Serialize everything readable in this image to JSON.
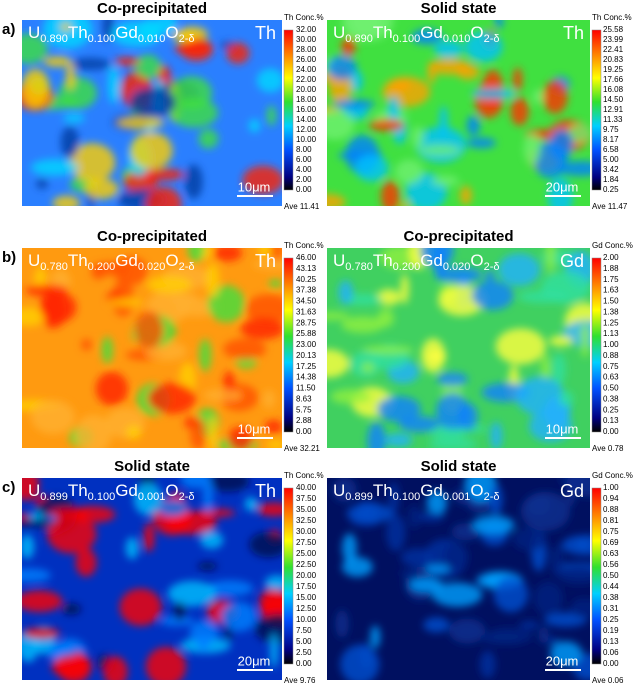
{
  "rows": [
    {
      "label": "a)",
      "panels": [
        {
          "title": "Co-precipitated",
          "formula": [
            "U",
            "0.890",
            "Th",
            "0.100",
            "Gd",
            "0.010",
            "O",
            "2-δ"
          ],
          "element": "Th",
          "colorbar_title": "Th Conc.%",
          "ticks": [
            "32.00",
            "30.00",
            "28.00",
            "26.00",
            "24.00",
            "22.00",
            "20.00",
            "18.00",
            "16.00",
            "14.00",
            "12.00",
            "10.00",
            "8.00",
            "6.00",
            "4.00",
            "2.00",
            "0.00"
          ],
          "average": "Ave 11.41",
          "scale_bar": "10μm"
        },
        {
          "title": "Solid state",
          "formula": [
            "U",
            "0.890",
            "Th",
            "0.100",
            "Gd",
            "0.010",
            "O",
            "2-δ"
          ],
          "element": "Th",
          "colorbar_title": "Th Conc.%",
          "ticks": [
            "25.58",
            "23.99",
            "22.41",
            "20.83",
            "19.25",
            "17.66",
            "16.08",
            "14.50",
            "12.91",
            "11.33",
            "9.75",
            "8.17",
            "6.58",
            "5.00",
            "3.42",
            "1.84",
            "0.25"
          ],
          "average": "Ave 11.47",
          "scale_bar": "20μm"
        }
      ]
    },
    {
      "label": "b)",
      "panels": [
        {
          "title": "Co-precipitated",
          "formula": [
            "U",
            "0.780",
            "Th",
            "0.200",
            "Gd",
            "0.020",
            "O",
            "2-δ"
          ],
          "element": "Th",
          "colorbar_title": "Th Conc.%",
          "ticks": [
            "46.00",
            "43.13",
            "40.25",
            "37.38",
            "34.50",
            "31.63",
            "28.75",
            "25.88",
            "23.00",
            "20.13",
            "17.25",
            "14.38",
            "11.50",
            "8.63",
            "5.75",
            "2.88",
            "0.00"
          ],
          "average": "Ave 32.21",
          "scale_bar": "10μm"
        },
        {
          "title": "Co-precipitated",
          "formula": [
            "U",
            "0.780",
            "Th",
            "0.200",
            "Gd",
            "0.020",
            "O",
            "2-δ"
          ],
          "element": "Gd",
          "colorbar_title": "Gd Conc.%",
          "ticks": [
            "2.00",
            "1.88",
            "1.75",
            "1.63",
            "1.50",
            "1.38",
            "1.25",
            "1.13",
            "1.00",
            "0.88",
            "0.75",
            "0.63",
            "0.50",
            "0.38",
            "0.25",
            "0.13",
            "0.00"
          ],
          "average": "Ave 0.78",
          "scale_bar": "10μm"
        }
      ]
    },
    {
      "label": "c)",
      "panels": [
        {
          "title": "Solid state",
          "formula": [
            "U",
            "0.899",
            "Th",
            "0.100",
            "Gd",
            "0.001",
            "O",
            "2-δ"
          ],
          "element": "Th",
          "colorbar_title": "Th Conc.%",
          "ticks": [
            "40.00",
            "37.50",
            "35.00",
            "32.50",
            "30.00",
            "27.50",
            "25.00",
            "22.50",
            "20.00",
            "17.50",
            "15.00",
            "12.50",
            "10.00",
            "7.50",
            "5.00",
            "2.50",
            "0.00"
          ],
          "average": "Ave 9.76",
          "scale_bar": "20μm"
        },
        {
          "title": "Solid state",
          "formula": [
            "U",
            "0.899",
            "Th",
            "0.100",
            "Gd",
            "0.001",
            "O",
            "2-δ"
          ],
          "element": "Gd",
          "colorbar_title": "Gd Conc.%",
          "ticks": [
            "1.00",
            "0.94",
            "0.88",
            "0.81",
            "0.75",
            "0.69",
            "0.63",
            "0.56",
            "0.50",
            "0.44",
            "0.38",
            "0.31",
            "0.25",
            "0.19",
            "0.13",
            "0.06",
            "0.00"
          ],
          "average": "Ave 0.06",
          "scale_bar": "20μm"
        }
      ]
    }
  ]
}
